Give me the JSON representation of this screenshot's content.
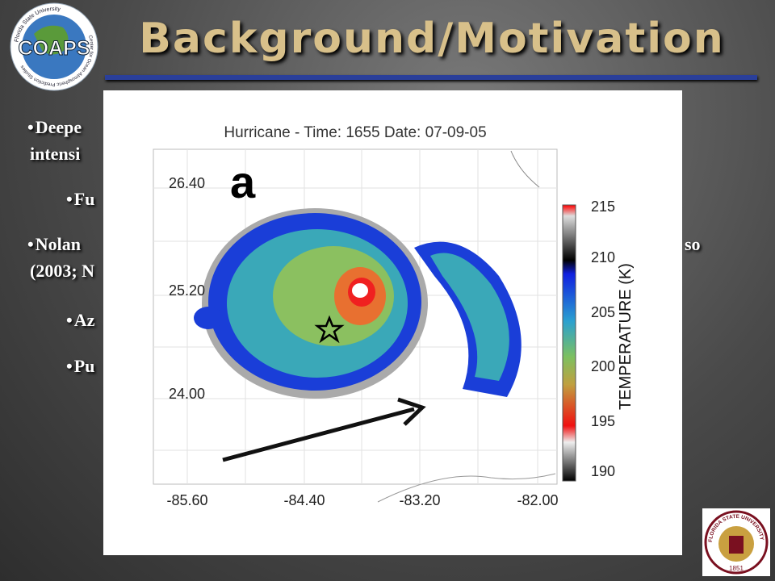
{
  "header": {
    "title": "Background/Motivation",
    "logo": {
      "name": "COAPS",
      "top_text": "Florida State University",
      "ring_text": "Center for Ocean-Atmospheric Prediction Studies"
    }
  },
  "bullets": [
    {
      "lines": [
        "Deepe",
        "intensi"
      ]
    },
    {
      "sub": "Fu"
    },
    {
      "lines": [
        "Nolan",
        "(2003; N"
      ],
      "tail": "so"
    },
    {
      "sub": "Az"
    },
    {
      "sub": "Pu"
    }
  ],
  "figure": {
    "title": "Hurricane - Time: 1655 Date: 07-09-05",
    "panel": "a",
    "yticks": [
      "26.40",
      "25.20",
      "24.00"
    ],
    "xticks": [
      "-85.60",
      "-84.40",
      "-83.20",
      "-82.00"
    ],
    "colorbar": {
      "label": "TEMPERATURE (K)",
      "ticks": [
        "215",
        "210",
        "205",
        "200",
        "195",
        "190"
      ]
    }
  },
  "seal": {
    "text": "FLORIDA STATE UNIVERSITY",
    "year": "1851"
  }
}
